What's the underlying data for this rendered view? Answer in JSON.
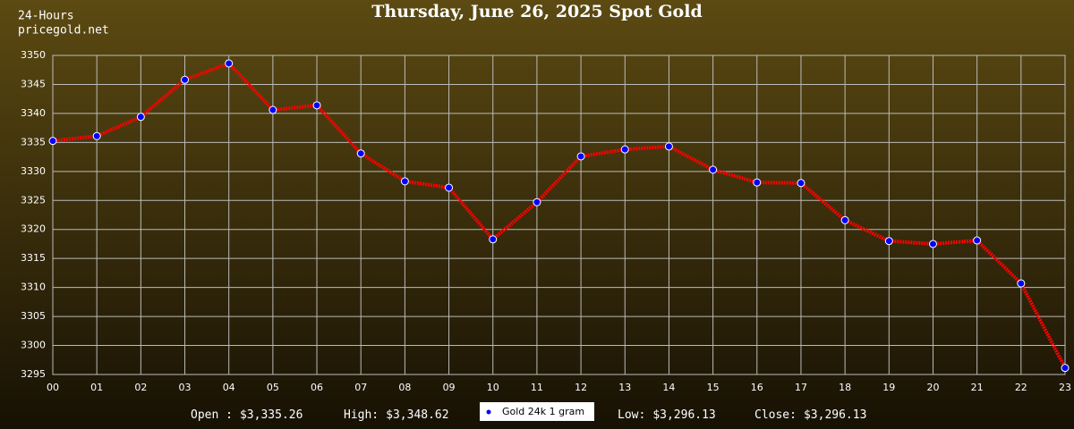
{
  "header": {
    "corner_line1": "24-Hours",
    "corner_line2": "pricegold.net"
  },
  "chart_data": {
    "type": "line",
    "title": "Thursday, June 26, 2025 Spot Gold",
    "categories": [
      "00",
      "01",
      "02",
      "03",
      "04",
      "05",
      "06",
      "07",
      "08",
      "09",
      "10",
      "11",
      "12",
      "13",
      "14",
      "15",
      "16",
      "17",
      "18",
      "19",
      "20",
      "21",
      "22",
      "23"
    ],
    "series": [
      {
        "name": "Gold 24k 1 gram",
        "color": "#ff0000",
        "marker_color": "#0000ff",
        "values": [
          3335.26,
          3336.1,
          3339.4,
          3345.8,
          3348.62,
          3340.6,
          3341.4,
          3333.1,
          3328.3,
          3327.2,
          3318.3,
          3324.7,
          3332.6,
          3333.8,
          3334.3,
          3330.3,
          3328.1,
          3328.0,
          3321.6,
          3318.0,
          3317.5,
          3318.1,
          3310.7,
          3296.13
        ]
      }
    ],
    "ylim": [
      3295,
      3350
    ],
    "yticks": [
      3295,
      3300,
      3305,
      3310,
      3315,
      3320,
      3325,
      3330,
      3335,
      3340,
      3345,
      3350
    ],
    "grid": true,
    "legend": "bottom"
  },
  "stats": [
    {
      "label": "Open :",
      "value": "$3,335.26"
    },
    {
      "label": "High:",
      "value": "$3,348.62"
    },
    {
      "label": "Low:",
      "value": "$3,296.13"
    },
    {
      "label": "Close:",
      "value": "$3,296.13"
    }
  ]
}
